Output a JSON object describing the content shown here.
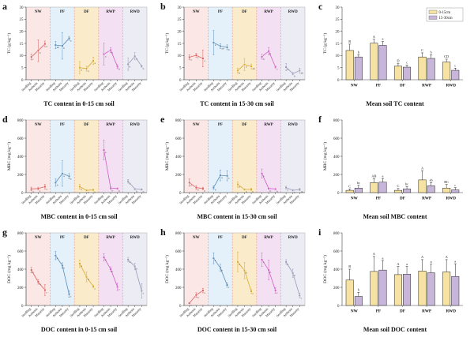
{
  "figure": {
    "description": "Soil carbon fractions under five treatments"
  },
  "colors": {
    "groups": [
      {
        "name": "NW",
        "bg": "#fbe7e6",
        "line": "#d9605f"
      },
      {
        "name": "PF",
        "bg": "#e4f1fa",
        "line": "#5b8db8"
      },
      {
        "name": "DF",
        "bg": "#faeccb",
        "line": "#d9a930"
      },
      {
        "name": "RWP",
        "bg": "#f3e0f2",
        "line": "#cf5fc4"
      },
      {
        "name": "RWD",
        "bg": "#ececf4",
        "line": "#9a99b5"
      }
    ],
    "separator": "#e89b9b",
    "bar_0_15": "#f6e3a3",
    "bar_15_30": "#c7b6da",
    "axis": "#444444",
    "border": "#aaaaaa"
  },
  "legend": {
    "labels": [
      "0-15cm",
      "15-30cm"
    ]
  },
  "stage_labels": [
    "Seedling",
    "Anthesis",
    "Maturity"
  ],
  "chart_data": [
    {
      "panel": "a",
      "type": "line",
      "title": "TC content in 0-15 cm soil",
      "ylabel": "TC (g kg⁻¹)",
      "ylim": [
        0,
        30
      ],
      "ytick": 5,
      "groups": [
        {
          "name": "NW",
          "values": [
            9.4,
            12.0,
            14.8
          ],
          "errors": [
            1.2,
            4.5,
            1.2
          ],
          "letters": [
            "c",
            "b",
            "a"
          ]
        },
        {
          "name": "PF",
          "values": [
            14.3,
            14.0,
            17.1
          ],
          "errors": [
            1.5,
            5.5,
            0.8
          ],
          "letters": [
            "ab",
            "b",
            "a"
          ]
        },
        {
          "name": "DF",
          "values": [
            5.0,
            4.6,
            7.8
          ],
          "errors": [
            2.5,
            1.0,
            1.5
          ],
          "letters": [
            "a",
            "a",
            "a"
          ]
        },
        {
          "name": "RWP",
          "values": [
            10.6,
            12.2,
            5.4
          ],
          "errors": [
            4.5,
            1.0,
            0.8
          ],
          "letters": [
            "a",
            "a",
            "b"
          ]
        },
        {
          "name": "RWD",
          "values": [
            6.4,
            9.7,
            5.6
          ],
          "errors": [
            2.5,
            1.5,
            0.5
          ],
          "letters": [
            "b",
            "a",
            "b"
          ]
        }
      ]
    },
    {
      "panel": "b",
      "type": "line",
      "title": "TC content in 15-30 cm soil",
      "ylabel": "TC (g kg⁻¹)",
      "ylim": [
        0,
        30
      ],
      "ytick": 5,
      "groups": [
        {
          "name": "NW",
          "values": [
            9.3,
            10.1,
            8.8
          ],
          "errors": [
            1.0,
            0.8,
            3.5
          ],
          "letters": [
            "a",
            "a",
            "a"
          ]
        },
        {
          "name": "PF",
          "values": [
            15.3,
            13.9,
            13.4
          ],
          "errors": [
            5.0,
            1.0,
            1.0
          ],
          "letters": [
            "a",
            "ab",
            "b"
          ]
        },
        {
          "name": "DF",
          "values": [
            3.8,
            6.3,
            5.5
          ],
          "errors": [
            1.0,
            2.5,
            1.0
          ],
          "letters": [
            "b",
            "a",
            "ab"
          ]
        },
        {
          "name": "RWP",
          "values": [
            9.5,
            11.8,
            5.3
          ],
          "errors": [
            1.0,
            1.5,
            0.5
          ],
          "letters": [
            "b",
            "a",
            "c"
          ]
        },
        {
          "name": "RWD",
          "values": [
            5.2,
            2.5,
            3.8
          ],
          "errors": [
            1.5,
            0.5,
            1.0
          ],
          "letters": [
            "a",
            "b",
            "ab"
          ]
        }
      ]
    },
    {
      "panel": "c",
      "type": "bar",
      "title": "Mean soil TC content",
      "ylabel": "TC (g kg⁻¹)",
      "ylim": [
        0,
        30
      ],
      "ytick": 5,
      "legend": true,
      "categories": [
        "NW",
        "PF",
        "DF",
        "RWP",
        "RWD"
      ],
      "series": [
        {
          "name": "0-15cm",
          "values": [
            12.1,
            15.1,
            5.6,
            9.4,
            7.3
          ],
          "errors": [
            2.6,
            1.6,
            1.2,
            1.7,
            1.2
          ],
          "letters": [
            "B",
            "A",
            "D",
            "C",
            "CD"
          ]
        },
        {
          "name": "15-30cm",
          "values": [
            9.4,
            14.2,
            5.2,
            8.8,
            3.9
          ],
          "errors": [
            1.0,
            1.6,
            0.9,
            1.5,
            0.9
          ],
          "letters": [
            "b",
            "a",
            "c",
            "b",
            "c"
          ]
        }
      ]
    },
    {
      "panel": "d",
      "type": "line",
      "title": "MBC content in 0-15 cm soil",
      "ylabel": "MBC (mg kg⁻¹)",
      "ylim": [
        0,
        800
      ],
      "ytick": 200,
      "groups": [
        {
          "name": "NW",
          "values": [
            40,
            45,
            65
          ],
          "errors": [
            20,
            15,
            25
          ],
          "letters": [
            "a",
            "a",
            "a"
          ]
        },
        {
          "name": "PF",
          "values": [
            110,
            210,
            180
          ],
          "errors": [
            40,
            140,
            30
          ],
          "letters": [
            "b",
            "a",
            "a"
          ]
        },
        {
          "name": "DF",
          "values": [
            65,
            25,
            30
          ],
          "errors": [
            25,
            10,
            10
          ],
          "letters": [
            "a",
            "b",
            "b"
          ]
        },
        {
          "name": "RWP",
          "values": [
            470,
            50,
            45
          ],
          "errors": [
            110,
            15,
            10
          ],
          "letters": [
            "a",
            "b",
            "b"
          ]
        },
        {
          "name": "RWD",
          "values": [
            125,
            40,
            35
          ],
          "errors": [
            20,
            10,
            10
          ],
          "letters": [
            "a",
            "b",
            "b"
          ]
        }
      ]
    },
    {
      "panel": "e",
      "type": "line",
      "title": "MBC content in 15-30 cm soil",
      "ylabel": "MBC (mg kg⁻¹)",
      "ylim": [
        0,
        800
      ],
      "ytick": 200,
      "groups": [
        {
          "name": "NW",
          "values": [
            110,
            55,
            45
          ],
          "errors": [
            40,
            20,
            15
          ],
          "letters": [
            "a",
            "b",
            "b"
          ]
        },
        {
          "name": "PF",
          "values": [
            55,
            190,
            185
          ],
          "errors": [
            20,
            60,
            55
          ],
          "letters": [
            "b",
            "a",
            "a"
          ]
        },
        {
          "name": "DF",
          "values": [
            90,
            35,
            35
          ],
          "errors": [
            30,
            10,
            15
          ],
          "letters": [
            "a",
            "b",
            "b"
          ]
        },
        {
          "name": "RWP",
          "values": [
            210,
            45,
            40
          ],
          "errors": [
            50,
            10,
            10
          ],
          "letters": [
            "a",
            "b",
            "b"
          ]
        },
        {
          "name": "RWD",
          "values": [
            55,
            25,
            35
          ],
          "errors": [
            15,
            10,
            15
          ],
          "letters": [
            "a",
            "b",
            "ab"
          ]
        }
      ]
    },
    {
      "panel": "f",
      "type": "bar",
      "title": "Mean soil MBC content",
      "ylabel": "MBC (mg kg⁻¹)",
      "ylim": [
        0,
        800
      ],
      "ytick": 200,
      "legend": false,
      "categories": [
        "NW",
        "PF",
        "DF",
        "RWP",
        "RWD"
      ],
      "series": [
        {
          "name": "0-15cm",
          "values": [
            25,
            110,
            25,
            140,
            50
          ],
          "errors": [
            15,
            45,
            20,
            100,
            40
          ],
          "letters": [
            "C",
            "AB",
            "C",
            "A",
            "BC"
          ]
        },
        {
          "name": "15-30cm",
          "values": [
            50,
            115,
            40,
            75,
            30
          ],
          "errors": [
            30,
            40,
            25,
            35,
            25
          ],
          "letters": [
            "bc",
            "a",
            "bc",
            "ab",
            "c"
          ]
        }
      ]
    },
    {
      "panel": "g",
      "type": "line",
      "title": "DOC content in 0-15 cm soil",
      "ylabel": "DOC (mg kg⁻¹)",
      "ylim": [
        0,
        800
      ],
      "ytick": 200,
      "groups": [
        {
          "name": "NW",
          "values": [
            390,
            260,
            170
          ],
          "errors": [
            30,
            25,
            60
          ],
          "letters": [
            "a",
            "b",
            "c"
          ]
        },
        {
          "name": "PF",
          "values": [
            550,
            440,
            125
          ],
          "errors": [
            45,
            30,
            35
          ],
          "letters": [
            "a",
            "b",
            "c"
          ]
        },
        {
          "name": "DF",
          "values": [
            460,
            315,
            210
          ],
          "errors": [
            40,
            55,
            15
          ],
          "letters": [
            "a",
            "b",
            "c"
          ]
        },
        {
          "name": "RWP",
          "values": [
            530,
            400,
            205
          ],
          "errors": [
            40,
            25,
            40
          ],
          "letters": [
            "a",
            "b",
            "c"
          ]
        },
        {
          "name": "RWD",
          "values": [
            505,
            430,
            160
          ],
          "errors": [
            25,
            35,
            80
          ],
          "letters": [
            "a",
            "b",
            "c"
          ]
        }
      ]
    },
    {
      "panel": "h",
      "type": "line",
      "title": "DOC content in 15-30 cm soil",
      "ylabel": "DOC (mg kg⁻¹)",
      "ylim": [
        0,
        800
      ],
      "ytick": 200,
      "groups": [
        {
          "name": "NW",
          "values": [
            25,
            115,
            165
          ],
          "errors": [
            10,
            25,
            25
          ],
          "letters": [
            "c",
            "b",
            "a"
          ]
        },
        {
          "name": "PF",
          "values": [
            520,
            415,
            225
          ],
          "errors": [
            60,
            40,
            25
          ],
          "letters": [
            "a",
            "b",
            "c"
          ]
        },
        {
          "name": "DF",
          "values": [
            480,
            385,
            155
          ],
          "errors": [
            110,
            90,
            20
          ],
          "letters": [
            "a",
            "b",
            "c"
          ]
        },
        {
          "name": "RWP",
          "values": [
            505,
            390,
            165
          ],
          "errors": [
            75,
            110,
            30
          ],
          "letters": [
            "a",
            "b",
            "c"
          ]
        },
        {
          "name": "RWD",
          "values": [
            480,
            355,
            110
          ],
          "errors": [
            25,
            45,
            25
          ],
          "letters": [
            "a",
            "b",
            "c"
          ]
        }
      ]
    },
    {
      "panel": "i",
      "type": "bar",
      "title": "Mean soil DOC content",
      "ylabel": "DOC (mg kg⁻¹)",
      "ylim": [
        0,
        800
      ],
      "ytick": 200,
      "legend": false,
      "categories": [
        "NW",
        "PF",
        "DF",
        "RWP",
        "RWD"
      ],
      "series": [
        {
          "name": "0-15cm",
          "values": [
            280,
            375,
            340,
            380,
            370
          ],
          "errors": [
            120,
            165,
            90,
            125,
            135
          ],
          "letters": [
            "B",
            "A",
            "A",
            "A",
            "A"
          ]
        },
        {
          "name": "15-30cm",
          "values": [
            100,
            390,
            345,
            360,
            320
          ],
          "errors": [
            45,
            105,
            85,
            95,
            140
          ],
          "letters": [
            "b",
            "a",
            "a",
            "a",
            "a"
          ]
        }
      ]
    }
  ]
}
